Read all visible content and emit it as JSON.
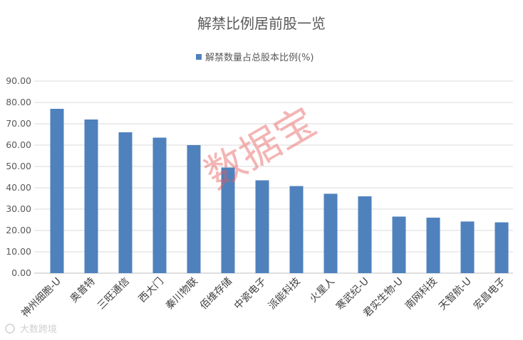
{
  "chart_data": {
    "type": "bar",
    "title": "解禁比例居前股一览",
    "series": [
      {
        "name": "解禁数量占总股本比例(%)",
        "color": "#4f81bd",
        "values": [
          77.0,
          72.0,
          66.0,
          63.5,
          60.0,
          49.5,
          43.5,
          40.8,
          37.2,
          36.0,
          26.5,
          26.0,
          24.2,
          23.8
        ]
      }
    ],
    "categories": [
      "神州细胞-U",
      "奥普特",
      "三旺通信",
      "西大门",
      "秦川物联",
      "佰维存储",
      "中瓷电子",
      "派能科技",
      "火星人",
      "寒武纪-U",
      "君实生物-U",
      "南网科技",
      "天智航-U",
      "宏昌电子"
    ],
    "ylim": [
      0,
      90
    ],
    "yticks": [
      "0.00",
      "10.00",
      "20.00",
      "30.00",
      "40.00",
      "50.00",
      "60.00",
      "70.00",
      "80.00",
      "90.00"
    ],
    "grid": true,
    "legend_position": "top-center",
    "xlabel": "",
    "ylabel": ""
  },
  "watermark": {
    "text": "数据宝"
  },
  "logo": {
    "text": "大数跨境"
  }
}
